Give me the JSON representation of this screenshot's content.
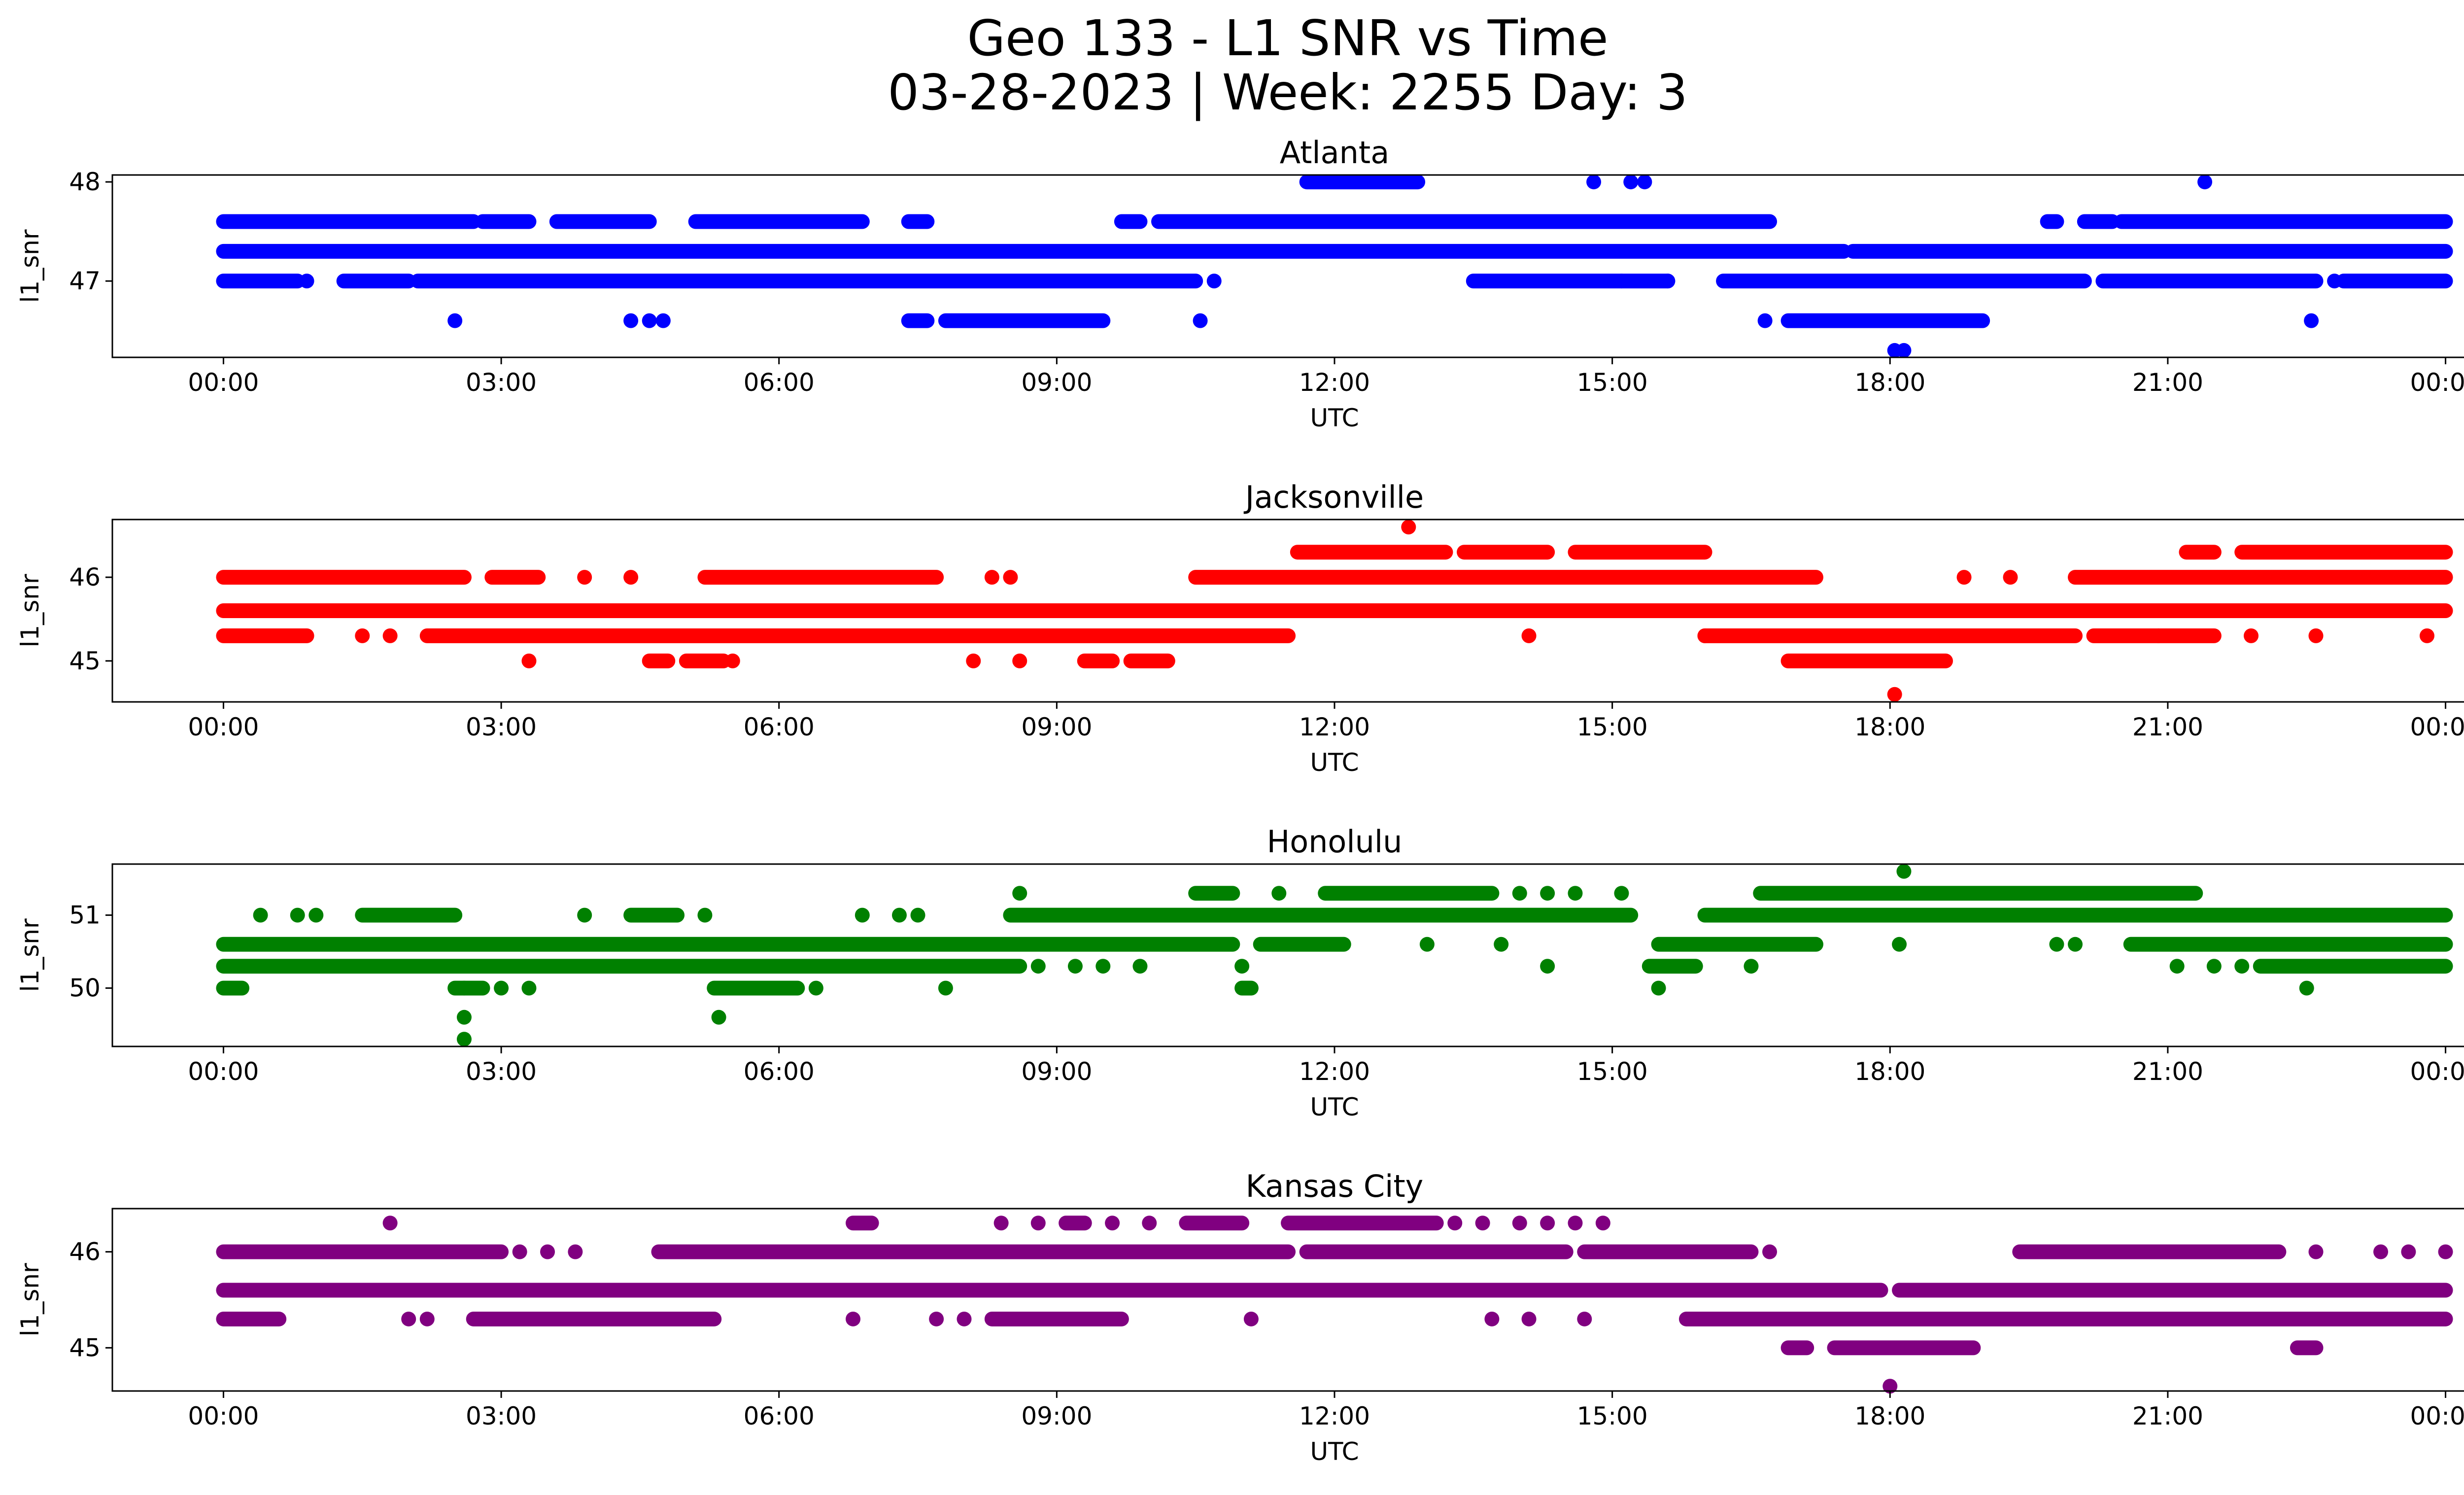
{
  "figure": {
    "title_line1": "Geo 133 - L1 SNR vs Time",
    "title_line2": "03-28-2023 | Week: 2255 Day: 3"
  },
  "chart_data": [
    {
      "type": "scatter",
      "title": "Atlanta",
      "xlabel": "UTC",
      "ylabel": "l1_snr",
      "color": "#0000ff",
      "xlim_hours": [
        -1.2,
        25.2
      ],
      "ylim": [
        46.23,
        48.07
      ],
      "x_ticks": [
        "00:00",
        "03:00",
        "06:00",
        "09:00",
        "12:00",
        "15:00",
        "18:00",
        "21:00",
        "00:00"
      ],
      "y_ticks": [
        47,
        48
      ],
      "bands": [
        {
          "y": 47.3,
          "segments": [
            [
              0,
              17.5
            ],
            [
              17.6,
              24
            ]
          ]
        },
        {
          "y": 47.6,
          "segments": [
            [
              0,
              2.7
            ],
            [
              2.8,
              3.3
            ],
            [
              3.6,
              4.6
            ],
            [
              5.1,
              6.9
            ],
            [
              7.4,
              7.6
            ],
            [
              9.7,
              9.9
            ],
            [
              10.1,
              16.7
            ],
            [
              19.7,
              19.8
            ],
            [
              20.1,
              20.4
            ],
            [
              20.5,
              24
            ]
          ]
        },
        {
          "y": 47.0,
          "segments": [
            [
              0,
              0.8
            ],
            [
              1.3,
              2.0
            ],
            [
              2.1,
              10.5
            ],
            [
              13.5,
              15.6
            ],
            [
              16.2,
              20.1
            ],
            [
              20.3,
              22.6
            ],
            [
              22.9,
              24
            ]
          ]
        },
        {
          "y": 46.6,
          "segments": [
            [
              7.4,
              7.6
            ],
            [
              7.8,
              9.5
            ],
            [
              16.9,
              19.0
            ]
          ]
        },
        {
          "y": 48.0,
          "segments": [
            [
              11.7,
              12.9
            ]
          ]
        }
      ],
      "points": [
        [
          0.9,
          47.0
        ],
        [
          10.7,
          47.0
        ],
        [
          15.1,
          47.0
        ],
        [
          15.6,
          47.0
        ],
        [
          22.8,
          47.0
        ],
        [
          2.5,
          46.6
        ],
        [
          4.4,
          46.6
        ],
        [
          4.6,
          46.6
        ],
        [
          4.75,
          46.6
        ],
        [
          10.55,
          46.6
        ],
        [
          16.65,
          46.6
        ],
        [
          22.55,
          46.6
        ],
        [
          14.8,
          48.0
        ],
        [
          15.2,
          48.0
        ],
        [
          15.35,
          48.0
        ],
        [
          21.4,
          48.0
        ],
        [
          18.05,
          46.3
        ],
        [
          18.15,
          46.3
        ]
      ]
    },
    {
      "type": "scatter",
      "title": "Jacksonville",
      "xlabel": "UTC",
      "ylabel": "l1_snr",
      "color": "#ff0000",
      "xlim_hours": [
        -1.2,
        25.2
      ],
      "ylim": [
        44.51,
        46.69
      ],
      "x_ticks": [
        "00:00",
        "03:00",
        "06:00",
        "09:00",
        "12:00",
        "15:00",
        "18:00",
        "21:00",
        "00:00"
      ],
      "y_ticks": [
        45,
        46
      ],
      "bands": [
        {
          "y": 45.6,
          "segments": [
            [
              0,
              24
            ]
          ]
        },
        {
          "y": 46.0,
          "segments": [
            [
              0,
              2.6
            ],
            [
              2.9,
              3.4
            ],
            [
              5.2,
              7.7
            ],
            [
              10.5,
              17.2
            ],
            [
              20.0,
              24
            ]
          ]
        },
        {
          "y": 45.3,
          "segments": [
            [
              0,
              0.9
            ],
            [
              2.2,
              11.5
            ],
            [
              16.0,
              20.0
            ],
            [
              20.2,
              21.5
            ]
          ]
        },
        {
          "y": 46.3,
          "segments": [
            [
              11.6,
              13.2
            ],
            [
              13.4,
              14.3
            ],
            [
              14.6,
              16.0
            ],
            [
              21.2,
              21.5
            ],
            [
              21.8,
              24
            ]
          ]
        },
        {
          "y": 45.0,
          "segments": [
            [
              4.6,
              4.8
            ],
            [
              5.0,
              5.4
            ],
            [
              9.3,
              9.6
            ],
            [
              9.8,
              10.2
            ],
            [
              16.9,
              18.6
            ]
          ]
        }
      ],
      "points": [
        [
          3.3,
          45.0
        ],
        [
          5.5,
          45.0
        ],
        [
          8.1,
          45.0
        ],
        [
          8.6,
          45.0
        ],
        [
          14.1,
          45.3
        ],
        [
          16.0,
          45.3
        ],
        [
          20.9,
          45.3
        ],
        [
          21.9,
          45.3
        ],
        [
          22.6,
          45.3
        ],
        [
          23.8,
          45.3
        ],
        [
          1.5,
          45.3
        ],
        [
          1.8,
          45.3
        ],
        [
          3.9,
          46.0
        ],
        [
          4.4,
          46.0
        ],
        [
          8.3,
          46.0
        ],
        [
          8.5,
          46.0
        ],
        [
          18.8,
          46.0
        ],
        [
          19.3,
          46.0
        ],
        [
          12.8,
          46.6
        ],
        [
          12.7,
          45.6
        ],
        [
          18.05,
          44.6
        ]
      ]
    },
    {
      "type": "scatter",
      "title": "Honolulu",
      "xlabel": "UTC",
      "ylabel": "l1_snr",
      "color": "#008000",
      "xlim_hours": [
        -1.2,
        25.2
      ],
      "ylim": [
        49.2,
        51.7
      ],
      "x_ticks": [
        "00:00",
        "03:00",
        "06:00",
        "09:00",
        "12:00",
        "15:00",
        "18:00",
        "21:00",
        "00:00"
      ],
      "y_ticks": [
        50,
        51
      ],
      "bands": [
        {
          "y": 50.6,
          "segments": [
            [
              0,
              10.9
            ],
            [
              11.2,
              12.1
            ],
            [
              15.5,
              17.2
            ],
            [
              20.6,
              24
            ]
          ]
        },
        {
          "y": 50.3,
          "segments": [
            [
              0,
              8.6
            ],
            [
              15.4,
              15.9
            ],
            [
              22.0,
              24
            ]
          ]
        },
        {
          "y": 51.0,
          "segments": [
            [
              1.5,
              2.5
            ],
            [
              4.4,
              4.9
            ],
            [
              8.5,
              15.2
            ],
            [
              16.0,
              24
            ]
          ]
        },
        {
          "y": 51.3,
          "segments": [
            [
              10.5,
              10.9
            ],
            [
              11.9,
              13.7
            ],
            [
              16.6,
              21.3
            ]
          ]
        },
        {
          "y": 50.0,
          "segments": [
            [
              0,
              0.2
            ],
            [
              2.5,
              2.8
            ],
            [
              5.3,
              6.2
            ],
            [
              11.0,
              11.1
            ]
          ]
        }
      ],
      "points": [
        [
          0.4,
          51.0
        ],
        [
          0.8,
          51.0
        ],
        [
          1.0,
          51.0
        ],
        [
          3.9,
          51.0
        ],
        [
          5.2,
          51.0
        ],
        [
          6.9,
          51.0
        ],
        [
          7.3,
          51.0
        ],
        [
          7.5,
          51.0
        ],
        [
          11.4,
          51.3
        ],
        [
          14.0,
          51.3
        ],
        [
          14.3,
          51.3
        ],
        [
          14.6,
          51.3
        ],
        [
          15.1,
          51.3
        ],
        [
          8.6,
          51.3
        ],
        [
          8.8,
          50.3
        ],
        [
          9.2,
          50.3
        ],
        [
          9.5,
          50.3
        ],
        [
          9.9,
          50.3
        ],
        [
          11.0,
          50.3
        ],
        [
          14.3,
          50.3
        ],
        [
          16.5,
          50.3
        ],
        [
          21.1,
          50.3
        ],
        [
          21.5,
          50.3
        ],
        [
          21.8,
          50.3
        ],
        [
          13.0,
          50.6
        ],
        [
          13.8,
          50.6
        ],
        [
          18.1,
          50.6
        ],
        [
          19.8,
          50.6
        ],
        [
          20.0,
          50.6
        ],
        [
          2.6,
          50.0
        ],
        [
          3.0,
          50.0
        ],
        [
          3.3,
          50.0
        ],
        [
          6.4,
          50.0
        ],
        [
          7.8,
          50.0
        ],
        [
          15.5,
          50.0
        ],
        [
          22.5,
          50.0
        ],
        [
          2.6,
          49.6
        ],
        [
          2.6,
          49.3
        ],
        [
          5.35,
          49.6
        ],
        [
          18.15,
          51.6
        ]
      ]
    },
    {
      "type": "scatter",
      "title": "Kansas City",
      "xlabel": "UTC",
      "ylabel": "l1_snr",
      "color": "#800080",
      "xlim_hours": [
        -1.2,
        25.2
      ],
      "ylim": [
        44.55,
        46.45
      ],
      "x_ticks": [
        "00:00",
        "03:00",
        "06:00",
        "09:00",
        "12:00",
        "15:00",
        "18:00",
        "21:00",
        "00:00"
      ],
      "y_ticks": [
        45,
        46
      ],
      "bands": [
        {
          "y": 45.6,
          "segments": [
            [
              0,
              17.9
            ],
            [
              18.1,
              24
            ]
          ]
        },
        {
          "y": 46.0,
          "segments": [
            [
              0,
              3.0
            ],
            [
              4.7,
              11.5
            ],
            [
              11.7,
              14.5
            ],
            [
              14.7,
              16.5
            ],
            [
              19.4,
              22.2
            ]
          ]
        },
        {
          "y": 45.3,
          "segments": [
            [
              0,
              0.6
            ],
            [
              2.7,
              5.3
            ],
            [
              8.3,
              9.7
            ],
            [
              15.8,
              24
            ]
          ]
        },
        {
          "y": 46.3,
          "segments": [
            [
              6.8,
              7.0
            ],
            [
              9.1,
              9.3
            ],
            [
              10.4,
              11.0
            ],
            [
              11.5,
              13.1
            ]
          ]
        },
        {
          "y": 45.0,
          "segments": [
            [
              16.9,
              17.1
            ],
            [
              17.4,
              18.9
            ],
            [
              22.4,
              22.6
            ]
          ]
        }
      ],
      "points": [
        [
          1.8,
          46.3
        ],
        [
          8.4,
          46.3
        ],
        [
          8.8,
          46.3
        ],
        [
          9.6,
          46.3
        ],
        [
          10.0,
          46.3
        ],
        [
          13.3,
          46.3
        ],
        [
          13.6,
          46.3
        ],
        [
          14.0,
          46.3
        ],
        [
          14.3,
          46.3
        ],
        [
          14.6,
          46.3
        ],
        [
          14.9,
          46.3
        ],
        [
          3.2,
          46.0
        ],
        [
          3.5,
          46.0
        ],
        [
          3.8,
          46.0
        ],
        [
          16.7,
          46.0
        ],
        [
          22.6,
          46.0
        ],
        [
          23.3,
          46.0
        ],
        [
          23.6,
          46.0
        ],
        [
          24.0,
          46.0
        ],
        [
          2.0,
          45.3
        ],
        [
          2.2,
          45.3
        ],
        [
          6.8,
          45.3
        ],
        [
          7.7,
          45.3
        ],
        [
          8.0,
          45.3
        ],
        [
          11.1,
          45.3
        ],
        [
          13.7,
          45.3
        ],
        [
          14.1,
          45.3
        ],
        [
          14.7,
          45.3
        ],
        [
          11.8,
          45.6
        ],
        [
          12.4,
          45.6
        ],
        [
          18.0,
          44.6
        ]
      ]
    }
  ]
}
